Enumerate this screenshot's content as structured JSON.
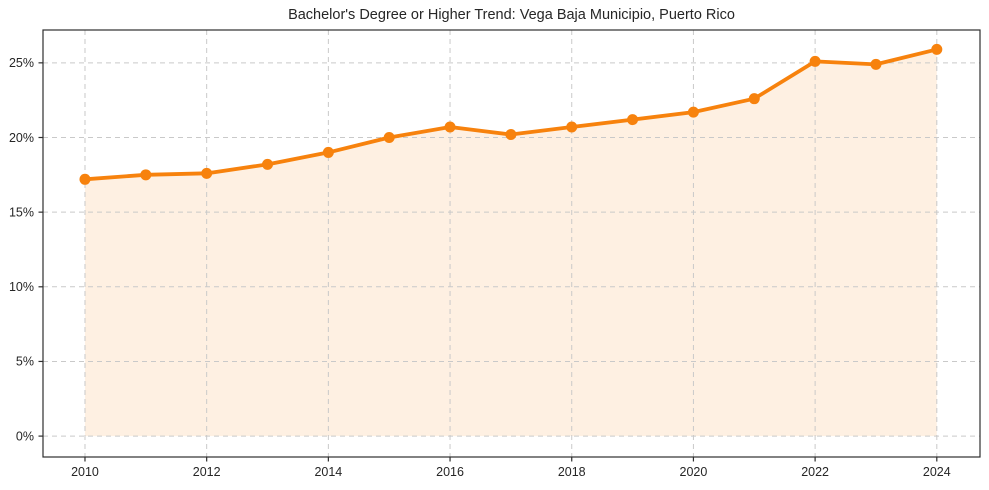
{
  "chart_data": {
    "type": "line",
    "title": "Bachelor's Degree or Higher Trend: Vega Baja Municipio, Puerto Rico",
    "x": [
      2010,
      2011,
      2012,
      2013,
      2014,
      2015,
      2016,
      2017,
      2018,
      2019,
      2020,
      2021,
      2022,
      2023,
      2024
    ],
    "values": [
      17.2,
      17.5,
      17.6,
      18.2,
      19.0,
      20.0,
      20.7,
      20.2,
      20.7,
      21.2,
      21.7,
      22.6,
      25.1,
      24.9,
      25.9
    ],
    "xlabel": "",
    "ylabel": "",
    "xlim": [
      2009.31,
      2024.71
    ],
    "ylim": [
      -1.4,
      27.2
    ],
    "xticks": {
      "values": [
        2010,
        2012,
        2014,
        2016,
        2018,
        2020,
        2022,
        2024
      ],
      "labels": [
        "2010",
        "2012",
        "2014",
        "2016",
        "2018",
        "2020",
        "2022",
        "2024"
      ]
    },
    "yticks": {
      "values": [
        0,
        5,
        10,
        15,
        20,
        25
      ],
      "labels": [
        "0%",
        "5%",
        "10%",
        "15%",
        "20%",
        "25%"
      ]
    },
    "grid": true,
    "grid_style": "dashed",
    "legend": false,
    "area_fill": true,
    "area_baseline": 0,
    "marker": {
      "shape": "circle",
      "radius": 5.5
    },
    "line_width": 3.8,
    "colors": {
      "line": "#f7820d",
      "area": "rgba(247,130,13,0.12)",
      "grid": "#c9c9c9",
      "spine": "#2e2e2e",
      "text": "#262626",
      "background": "#ffffff"
    }
  }
}
